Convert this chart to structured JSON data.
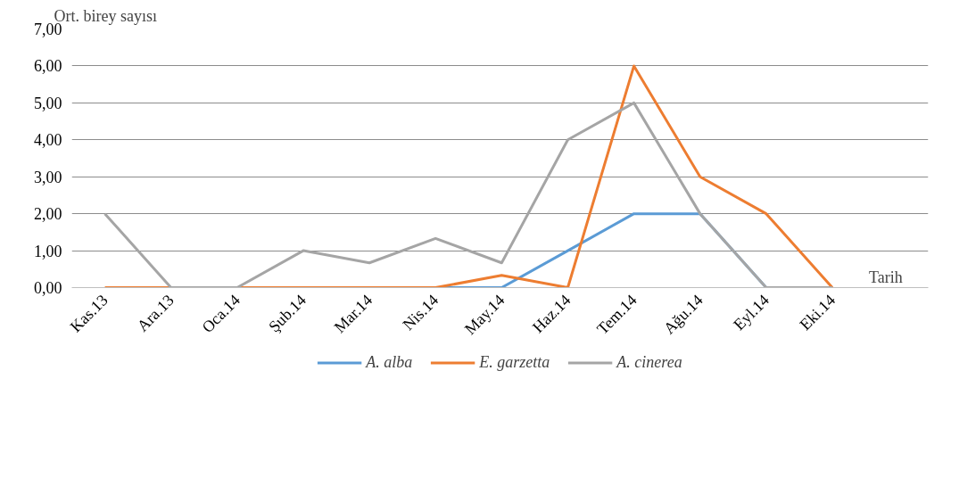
{
  "chart_data": {
    "type": "line",
    "ylabel": "Ort. birey sayısı",
    "xlabel": "Tarih",
    "categories": [
      "Kas.13",
      "Ara.13",
      "Oca.14",
      "Şub.14",
      "Mar.14",
      "Nis.14",
      "May.14",
      "Haz.14",
      "Tem.14",
      "Ağu.14",
      "Eyl.14",
      "Eki.14"
    ],
    "series": [
      {
        "name": "A. alba",
        "color": "#5b9bd5",
        "values": [
          null,
          null,
          null,
          null,
          null,
          0,
          0,
          1,
          2,
          2,
          0,
          0
        ]
      },
      {
        "name": "E. garzetta",
        "color": "#ed7d31",
        "values": [
          0,
          0,
          0,
          0,
          0,
          0,
          0.33,
          0,
          6,
          3,
          2,
          0
        ]
      },
      {
        "name": "A. cinerea",
        "color": "#a5a5a5",
        "values": [
          2,
          0,
          0,
          1,
          0.67,
          1.33,
          0.67,
          4,
          5,
          2,
          0,
          0
        ]
      }
    ],
    "ylim": [
      0,
      7
    ],
    "yticks": [
      {
        "value": 0,
        "label": "0,00"
      },
      {
        "value": 1,
        "label": "1,00"
      },
      {
        "value": 2,
        "label": "2,00"
      },
      {
        "value": 3,
        "label": "3,00"
      },
      {
        "value": 4,
        "label": "4,00"
      },
      {
        "value": 5,
        "label": "5,00"
      },
      {
        "value": 6,
        "label": "6,00"
      },
      {
        "value": 7,
        "label": "7,00"
      }
    ],
    "grid": "y",
    "legend": "bottom",
    "marker": "none",
    "line_style": "solid"
  }
}
